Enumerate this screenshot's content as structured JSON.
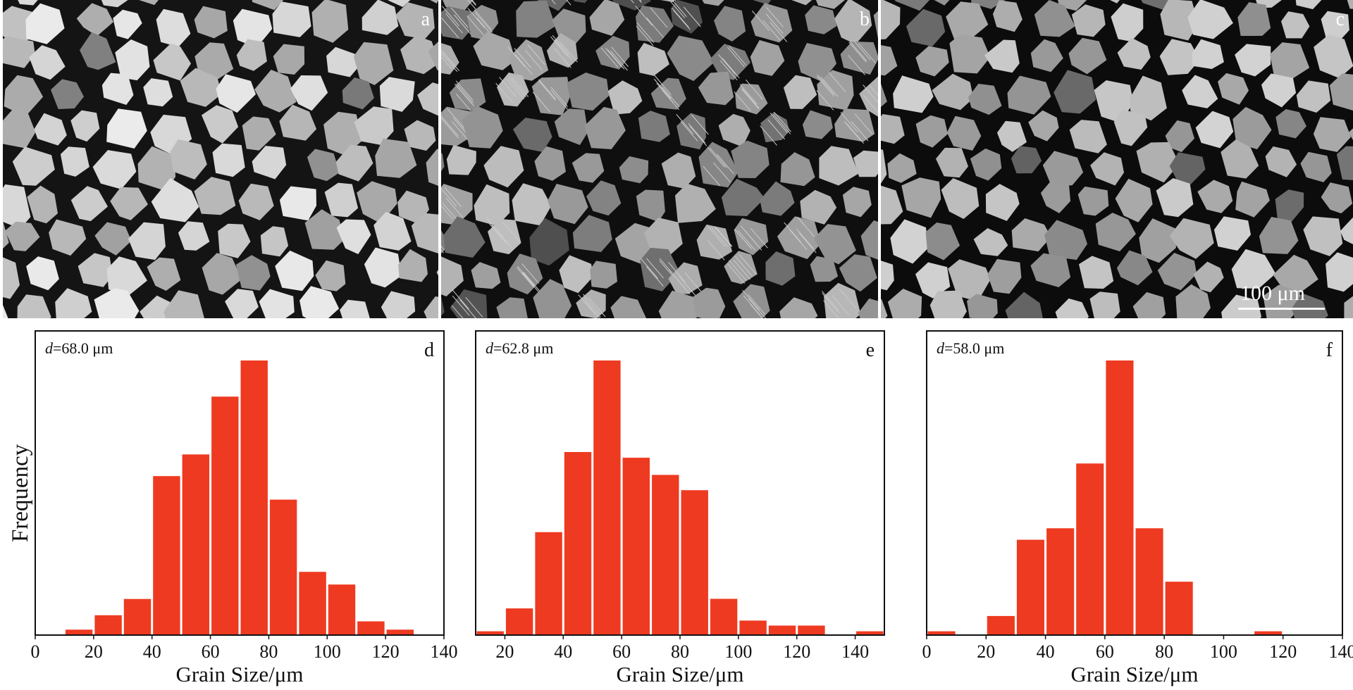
{
  "micrographs": {
    "panels": [
      {
        "letter": "a",
        "tone": "#c9c9c9",
        "boundary": "#141414",
        "twins": false,
        "dark_grains": true
      },
      {
        "letter": "b",
        "tone": "#9e9e9e",
        "boundary": "#0f0f0f",
        "twins": true,
        "dark_grains": true
      },
      {
        "letter": "c",
        "tone": "#b2b2b2",
        "boundary": "#0c0c0c",
        "twins": false,
        "dark_grains": true
      }
    ],
    "scale_bar_label": "100 μm"
  },
  "y_axis_label": "Frequency",
  "colors": {
    "bar": "#ee3a21",
    "axis": "#111111",
    "text": "#111111"
  },
  "chart_data": [
    {
      "type": "bar",
      "panel_letter": "d",
      "annotation_italic": "d",
      "annotation_value": "=68.0 μm",
      "xlabel": "Grain Size/μm",
      "ylabel": "Frequency",
      "xlim": [
        0,
        140
      ],
      "ylim": [
        0,
        7.6
      ],
      "xticks": [
        0,
        20,
        40,
        60,
        80,
        100,
        120,
        140
      ],
      "bin_edges_start": [
        10,
        20,
        30,
        40,
        50,
        60,
        70,
        80,
        90,
        100,
        110,
        120
      ],
      "bin_width": 10,
      "values": [
        0.15,
        0.55,
        1.0,
        4.4,
        5.0,
        6.6,
        7.6,
        3.75,
        1.75,
        1.4,
        0.38,
        0.15
      ]
    },
    {
      "type": "bar",
      "panel_letter": "e",
      "annotation_italic": "d",
      "annotation_value": "=62.8 μm",
      "xlabel": "Grain Size/μm",
      "ylabel": "Frequency",
      "xlim": [
        10,
        150
      ],
      "ylim": [
        0,
        7.2
      ],
      "xticks": [
        20,
        40,
        60,
        80,
        100,
        120,
        140
      ],
      "bin_edges_start": [
        10,
        20,
        30,
        40,
        50,
        60,
        70,
        80,
        90,
        100,
        110,
        120,
        140
      ],
      "bin_width": 10,
      "values": [
        0.1,
        0.7,
        2.7,
        4.8,
        7.2,
        4.65,
        4.2,
        3.8,
        0.95,
        0.38,
        0.25,
        0.25,
        0.1
      ]
    },
    {
      "type": "bar",
      "panel_letter": "f",
      "annotation_italic": "d",
      "annotation_value": "=58.0 μm",
      "xlabel": "Grain Size/μm",
      "ylabel": "Frequency",
      "xlim": [
        0,
        140
      ],
      "ylim": [
        0,
        7.2
      ],
      "xticks": [
        0,
        20,
        40,
        60,
        80,
        100,
        120,
        140
      ],
      "bin_edges_start": [
        0,
        20,
        30,
        40,
        50,
        60,
        70,
        80,
        110
      ],
      "bin_width": 10,
      "values": [
        0.1,
        0.5,
        2.5,
        2.8,
        4.5,
        7.2,
        2.8,
        1.4,
        0.1
      ]
    }
  ]
}
